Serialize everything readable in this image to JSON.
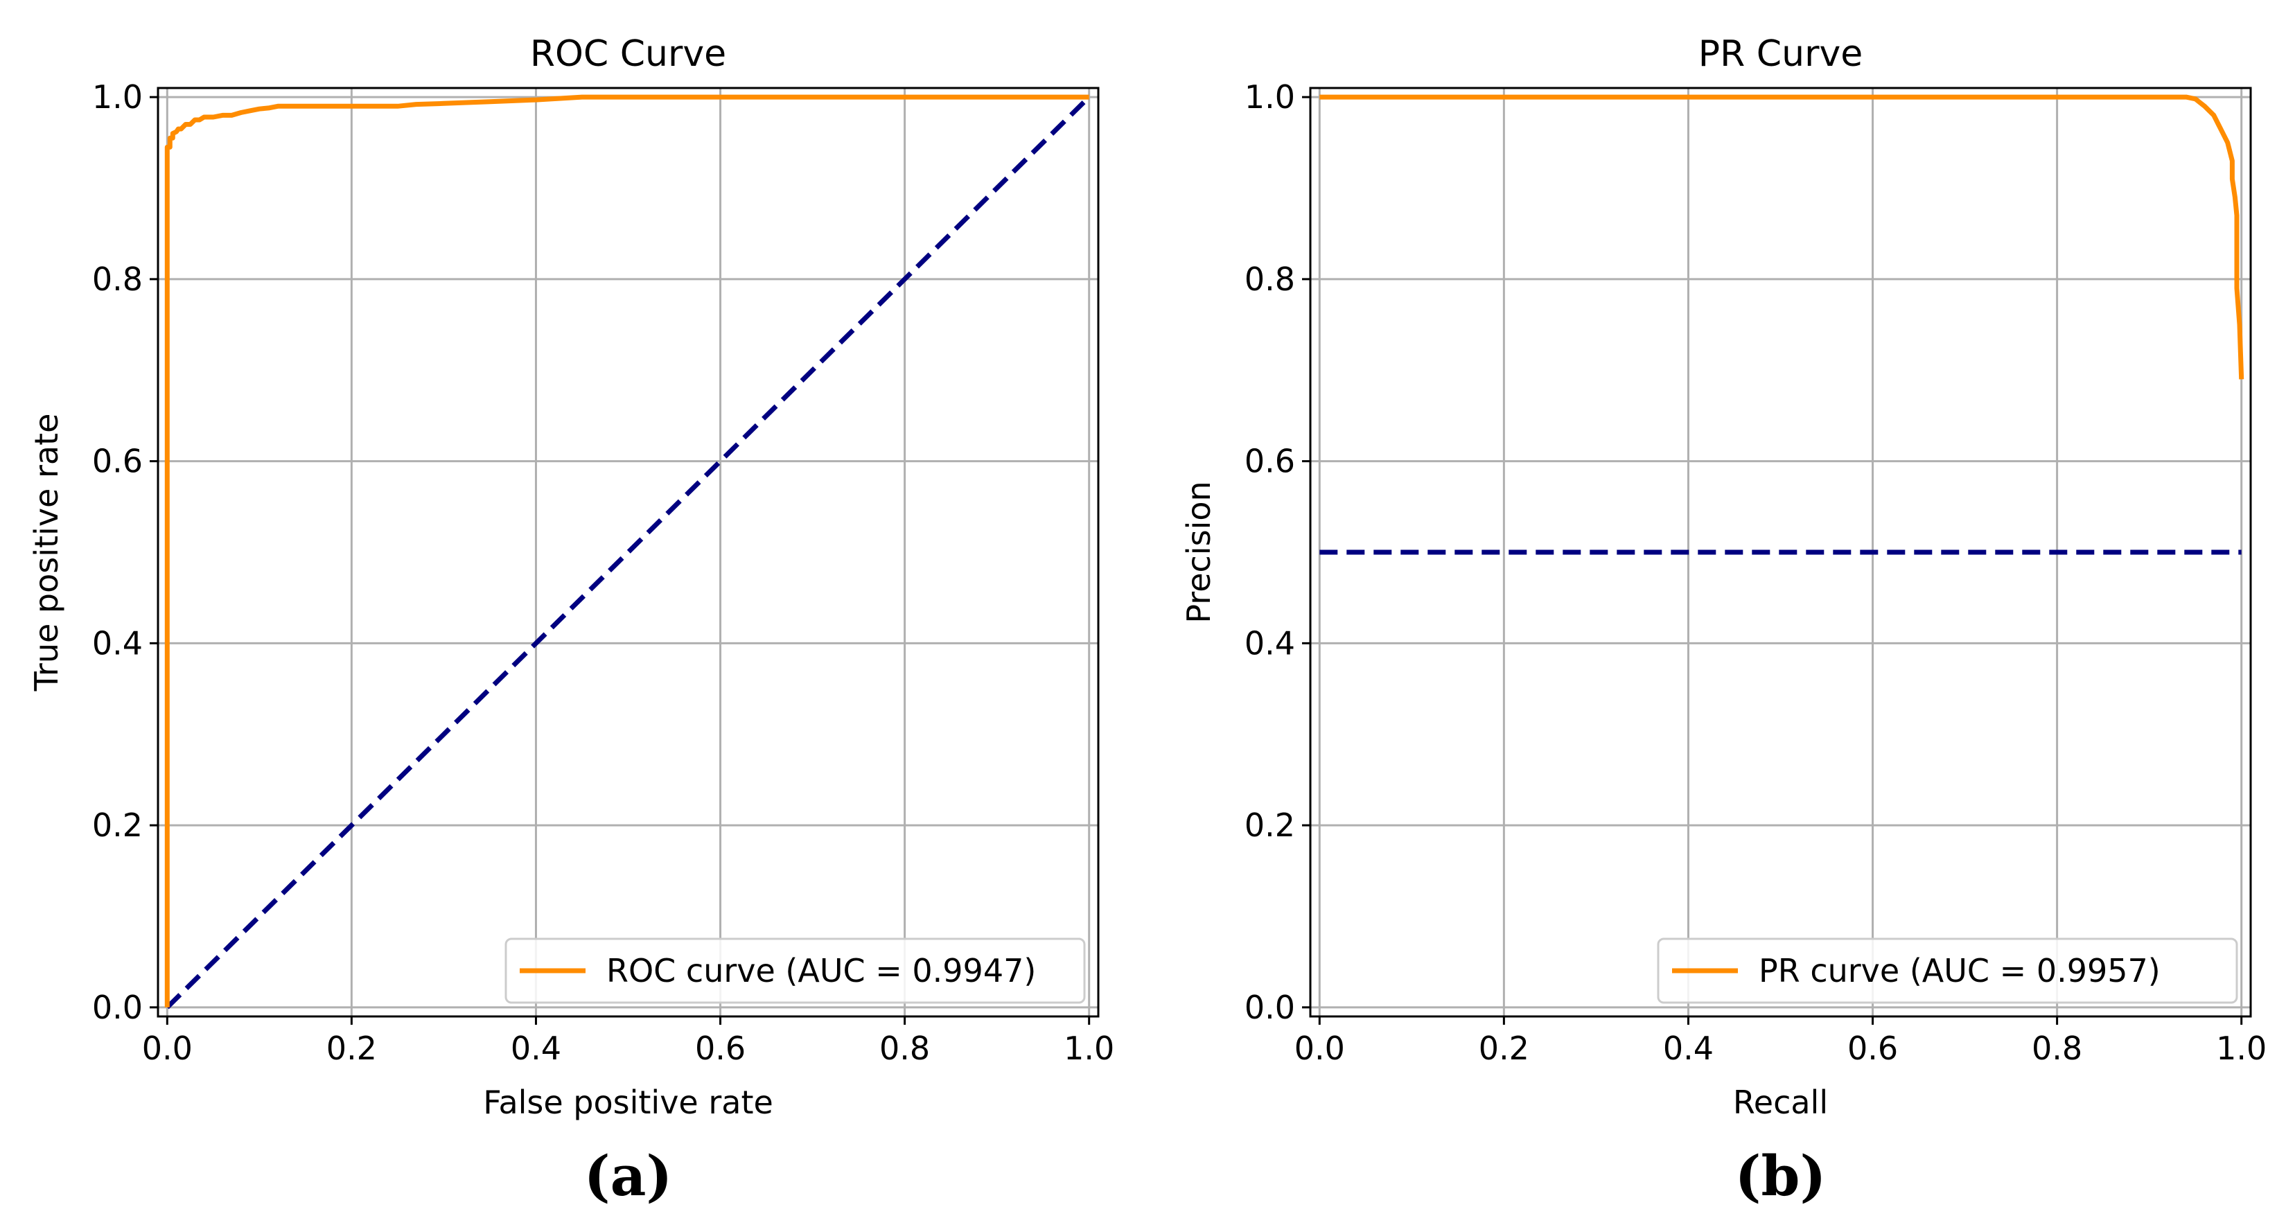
{
  "chart_data": [
    {
      "type": "line",
      "panel_label": "(a)",
      "title": "ROC Curve",
      "xlabel": "False positive rate",
      "ylabel": "True positive rate",
      "xlim": [
        -0.01,
        1.01
      ],
      "ylim": [
        -0.01,
        1.01
      ],
      "xticks": [
        "0.0",
        "0.2",
        "0.4",
        "0.6",
        "0.8",
        "1.0"
      ],
      "yticks": [
        "0.0",
        "0.2",
        "0.4",
        "0.6",
        "0.8",
        "1.0"
      ],
      "grid": true,
      "legend_position": "lower-right",
      "series": [
        {
          "name": "ROC curve (AUC = 0.9947)",
          "color": "#ff8c00",
          "style": "solid",
          "x": [
            0.0,
            0.0,
            0.003,
            0.003,
            0.006,
            0.006,
            0.01,
            0.012,
            0.015,
            0.02,
            0.025,
            0.03,
            0.035,
            0.04,
            0.05,
            0.06,
            0.07,
            0.08,
            0.09,
            0.1,
            0.11,
            0.12,
            0.15,
            0.2,
            0.25,
            0.27,
            0.3,
            0.35,
            0.4,
            0.45,
            0.5,
            0.6,
            0.7,
            0.8,
            0.9,
            1.0
          ],
          "y": [
            0.0,
            0.945,
            0.945,
            0.955,
            0.955,
            0.96,
            0.962,
            0.965,
            0.965,
            0.97,
            0.97,
            0.975,
            0.975,
            0.978,
            0.978,
            0.98,
            0.98,
            0.983,
            0.985,
            0.987,
            0.988,
            0.99,
            0.99,
            0.99,
            0.99,
            0.992,
            0.993,
            0.995,
            0.997,
            1.0,
            1.0,
            1.0,
            1.0,
            1.0,
            1.0,
            1.0
          ]
        },
        {
          "name": "",
          "color": "#000080",
          "style": "dashed",
          "x": [
            0.0,
            1.0
          ],
          "y": [
            0.0,
            1.0
          ]
        }
      ]
    },
    {
      "type": "line",
      "panel_label": "(b)",
      "title": "PR Curve",
      "xlabel": "Recall",
      "ylabel": "Precision",
      "xlim": [
        -0.01,
        1.01
      ],
      "ylim": [
        -0.01,
        1.01
      ],
      "xticks": [
        "0.0",
        "0.2",
        "0.4",
        "0.6",
        "0.8",
        "1.0"
      ],
      "yticks": [
        "0.0",
        "0.2",
        "0.4",
        "0.6",
        "0.8",
        "1.0"
      ],
      "grid": true,
      "legend_position": "lower-right",
      "series": [
        {
          "name": "PR curve (AUC = 0.9957)",
          "color": "#ff8c00",
          "style": "solid",
          "x": [
            0.0,
            0.2,
            0.4,
            0.6,
            0.8,
            0.94,
            0.95,
            0.96,
            0.97,
            0.975,
            0.98,
            0.985,
            0.99,
            0.99,
            0.993,
            0.995,
            0.995,
            0.998,
            1.0
          ],
          "y": [
            1.0,
            1.0,
            1.0,
            1.0,
            1.0,
            1.0,
            0.998,
            0.99,
            0.98,
            0.97,
            0.96,
            0.95,
            0.93,
            0.91,
            0.89,
            0.87,
            0.79,
            0.75,
            0.69
          ]
        },
        {
          "name": "",
          "color": "#000080",
          "style": "dashed",
          "x": [
            0.0,
            1.0
          ],
          "y": [
            0.5,
            0.5
          ]
        }
      ]
    }
  ]
}
